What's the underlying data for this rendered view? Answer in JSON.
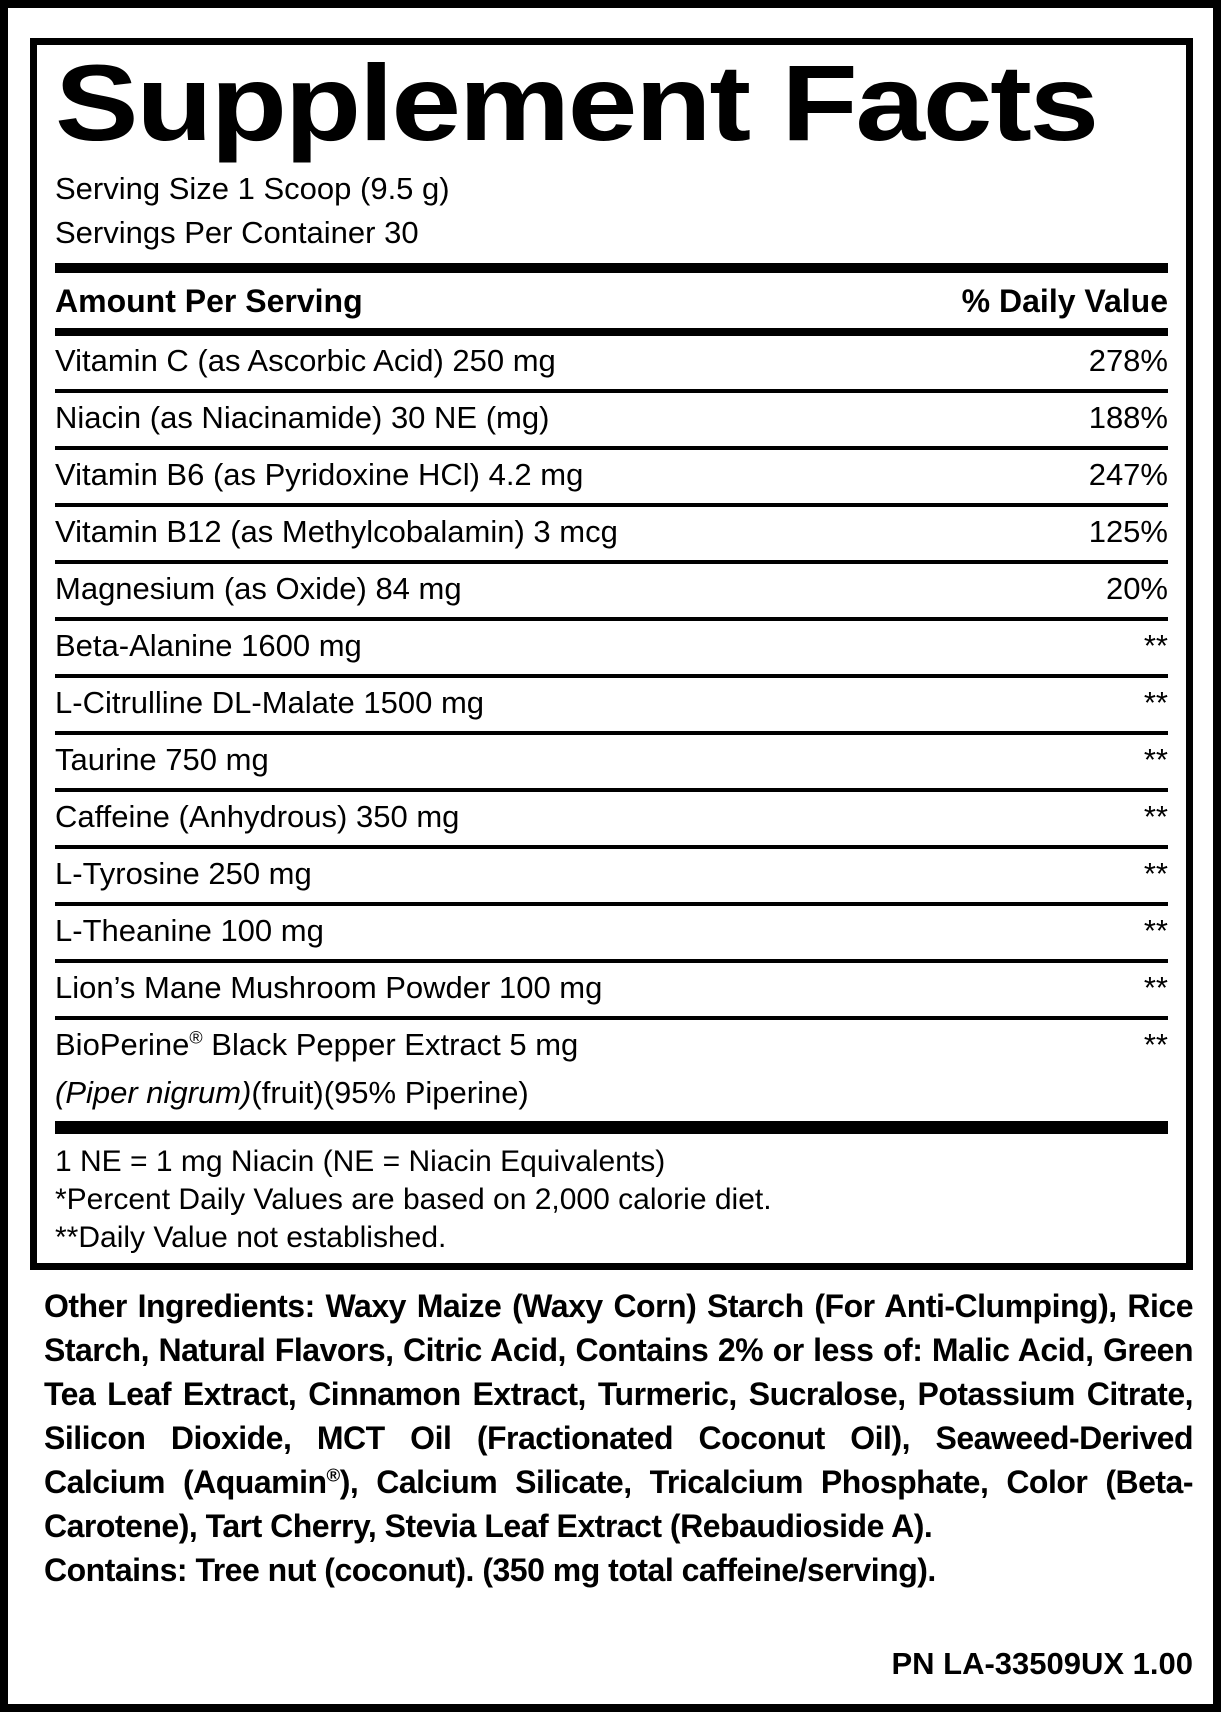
{
  "label": {
    "title": "Supplement Facts",
    "serving_size": "Serving Size 1 Scoop (9.5 g)",
    "servings_per_container": "Servings Per Container 30",
    "header": {
      "amount": "Amount Per Serving",
      "daily_value": "% Daily Value"
    },
    "rows": [
      {
        "name": "Vitamin C (as Ascorbic Acid) 250 mg",
        "dv": "278%"
      },
      {
        "name": "Niacin (as Niacinamide) 30 NE (mg)",
        "dv": "188%"
      },
      {
        "name": "Vitamin B6 (as Pyridoxine HCl) 4.2 mg",
        "dv": "247%"
      },
      {
        "name": "Vitamin B12 (as Methylcobalamin) 3 mcg",
        "dv": "125%"
      },
      {
        "name": "Magnesium (as Oxide) 84 mg",
        "dv": "20%"
      },
      {
        "name": "Beta-Alanine 1600 mg",
        "dv": "**"
      },
      {
        "name": "L-Citrulline DL-Malate 1500 mg",
        "dv": "**"
      },
      {
        "name": "Taurine 750 mg",
        "dv": "**"
      },
      {
        "name": "Caffeine (Anhydrous) 350 mg",
        "dv": "**"
      },
      {
        "name": "L-Tyrosine 250 mg",
        "dv": "**"
      },
      {
        "name": "L-Theanine 100 mg",
        "dv": "**"
      },
      {
        "name": "Lion’s Mane Mushroom Powder 100 mg",
        "dv": "**"
      },
      {
        "name": "BioPerine® Black Pepper Extract 5 mg",
        "name_line2": [
          {
            "text": "(Piper nigrum)",
            "italic": true
          },
          {
            "text": "(fruit)(95% Piperine)",
            "italic": false
          }
        ],
        "dv": "**"
      }
    ],
    "footnotes": [
      "1 NE = 1 mg Niacin (NE = Niacin Equivalents)",
      "*Percent Daily Values are based on 2,000 calorie diet.",
      "**Daily Value not established."
    ],
    "other_ingredients": "Other Ingredients: Waxy Maize (Waxy Corn) Starch (For Anti-Clumping), Rice Starch, Natural Flavors, Citric Acid, Contains 2% or less of: Malic Acid, Green Tea Leaf Extract, Cinnamon Extract, Turmeric, Sucralose, Potassium Citrate, Silicon Dioxide, MCT Oil (Fractionated Coconut Oil), Seaweed-Derived Calcium (Aquamin®), Calcium Silicate, Tricalcium Phosphate, Color (Beta-Carotene), Tart Cherry, Stevia Leaf Extract (Rebaudioside A).",
    "contains": "Contains: Tree nut (coconut). (350 mg total caffeine/serving).",
    "part_number": "PN LA-33509UX 1.00",
    "colors": {
      "ink": "#000000",
      "background": "#ffffff"
    }
  }
}
